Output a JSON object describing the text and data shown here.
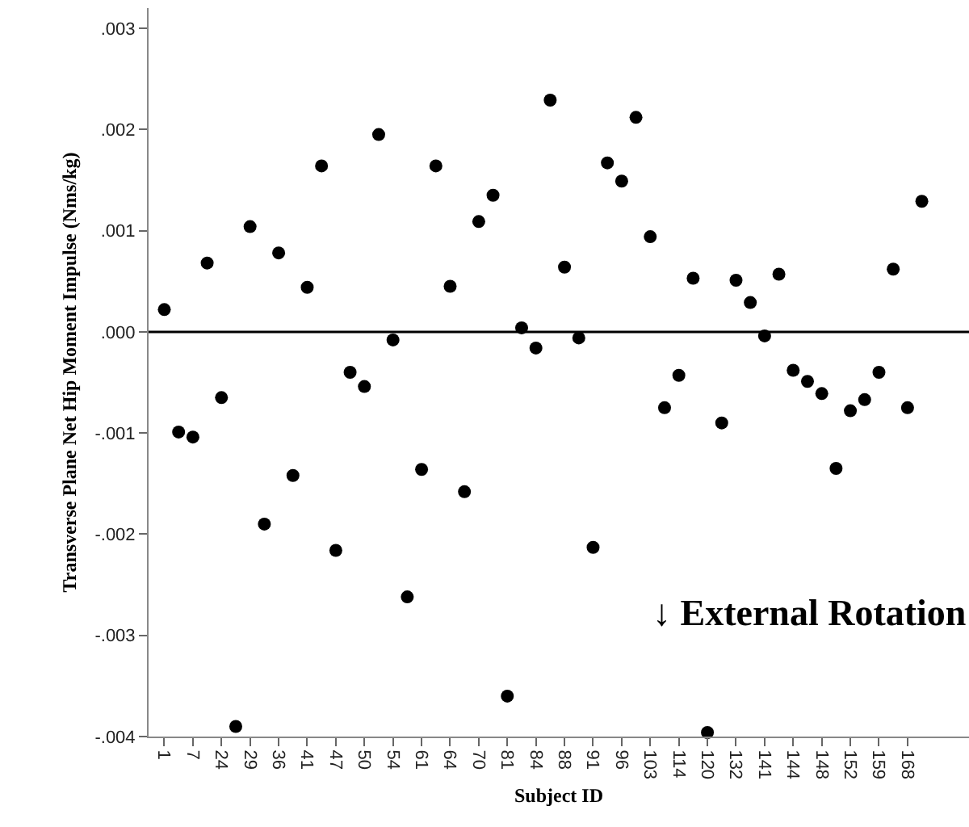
{
  "chart_data": {
    "type": "scatter",
    "xlabel": "Subject ID",
    "ylabel": "Transverse Plane Net Hip Moment Impulse (Nms/kg)",
    "annotations": [
      "↓ External Rotation"
    ],
    "categories": [
      "1",
      null,
      "7",
      null,
      "24",
      null,
      "29",
      null,
      "36",
      null,
      "41",
      null,
      "47",
      null,
      "50",
      null,
      "54",
      null,
      "61",
      null,
      "64",
      null,
      "70",
      null,
      "81",
      null,
      "84",
      null,
      "88",
      null,
      "91",
      null,
      "96",
      null,
      "103",
      null,
      "114",
      null,
      "120",
      null,
      "132",
      null,
      "141",
      null,
      "144",
      null,
      "148",
      null,
      "152",
      null,
      "159",
      null,
      "168",
      null
    ],
    "series": [
      {
        "color": "#000000",
        "values": [
          0.00022,
          -0.00099,
          -0.00104,
          0.00068,
          -0.00065,
          -0.0039,
          0.00104,
          -0.0019,
          0.00078,
          -0.00142,
          0.00044,
          0.00164,
          -0.00216,
          -0.0004,
          -0.00054,
          0.00195,
          -8e-05,
          -0.00262,
          -0.00136,
          0.00164,
          0.00045,
          -0.00158,
          0.00109,
          0.00135,
          -0.0036,
          4e-05,
          -0.00016,
          0.00229,
          0.00064,
          -6e-05,
          -0.00213,
          0.00167,
          0.00149,
          0.00212,
          0.00094,
          -0.00075,
          -0.00043,
          0.00053,
          -0.00396,
          -0.0009,
          0.00051,
          0.00029,
          -4e-05,
          0.00057,
          -0.00038,
          -0.00049,
          -0.00061,
          -0.00135,
          -0.00078,
          -0.00067,
          -0.0004,
          0.00062,
          -0.00075,
          0.00129
        ]
      }
    ],
    "ylim": [
      -0.004,
      0.0032
    ],
    "yticks": [
      {
        "value": -0.004,
        "label": "-.004"
      },
      {
        "value": -0.003,
        "label": "-.003"
      },
      {
        "value": -0.002,
        "label": "-.002"
      },
      {
        "value": -0.001,
        "label": "-.001"
      },
      {
        "value": 0,
        "label": ".000"
      },
      {
        "value": 0.001,
        "label": ".001"
      },
      {
        "value": 0.002,
        "label": ".002"
      },
      {
        "value": 0.003,
        "label": ".003"
      }
    ],
    "ref_lines": [
      {
        "axis": "y",
        "value": 0,
        "color": "#000000",
        "line_style": "solid"
      }
    ],
    "marker": "circle"
  }
}
